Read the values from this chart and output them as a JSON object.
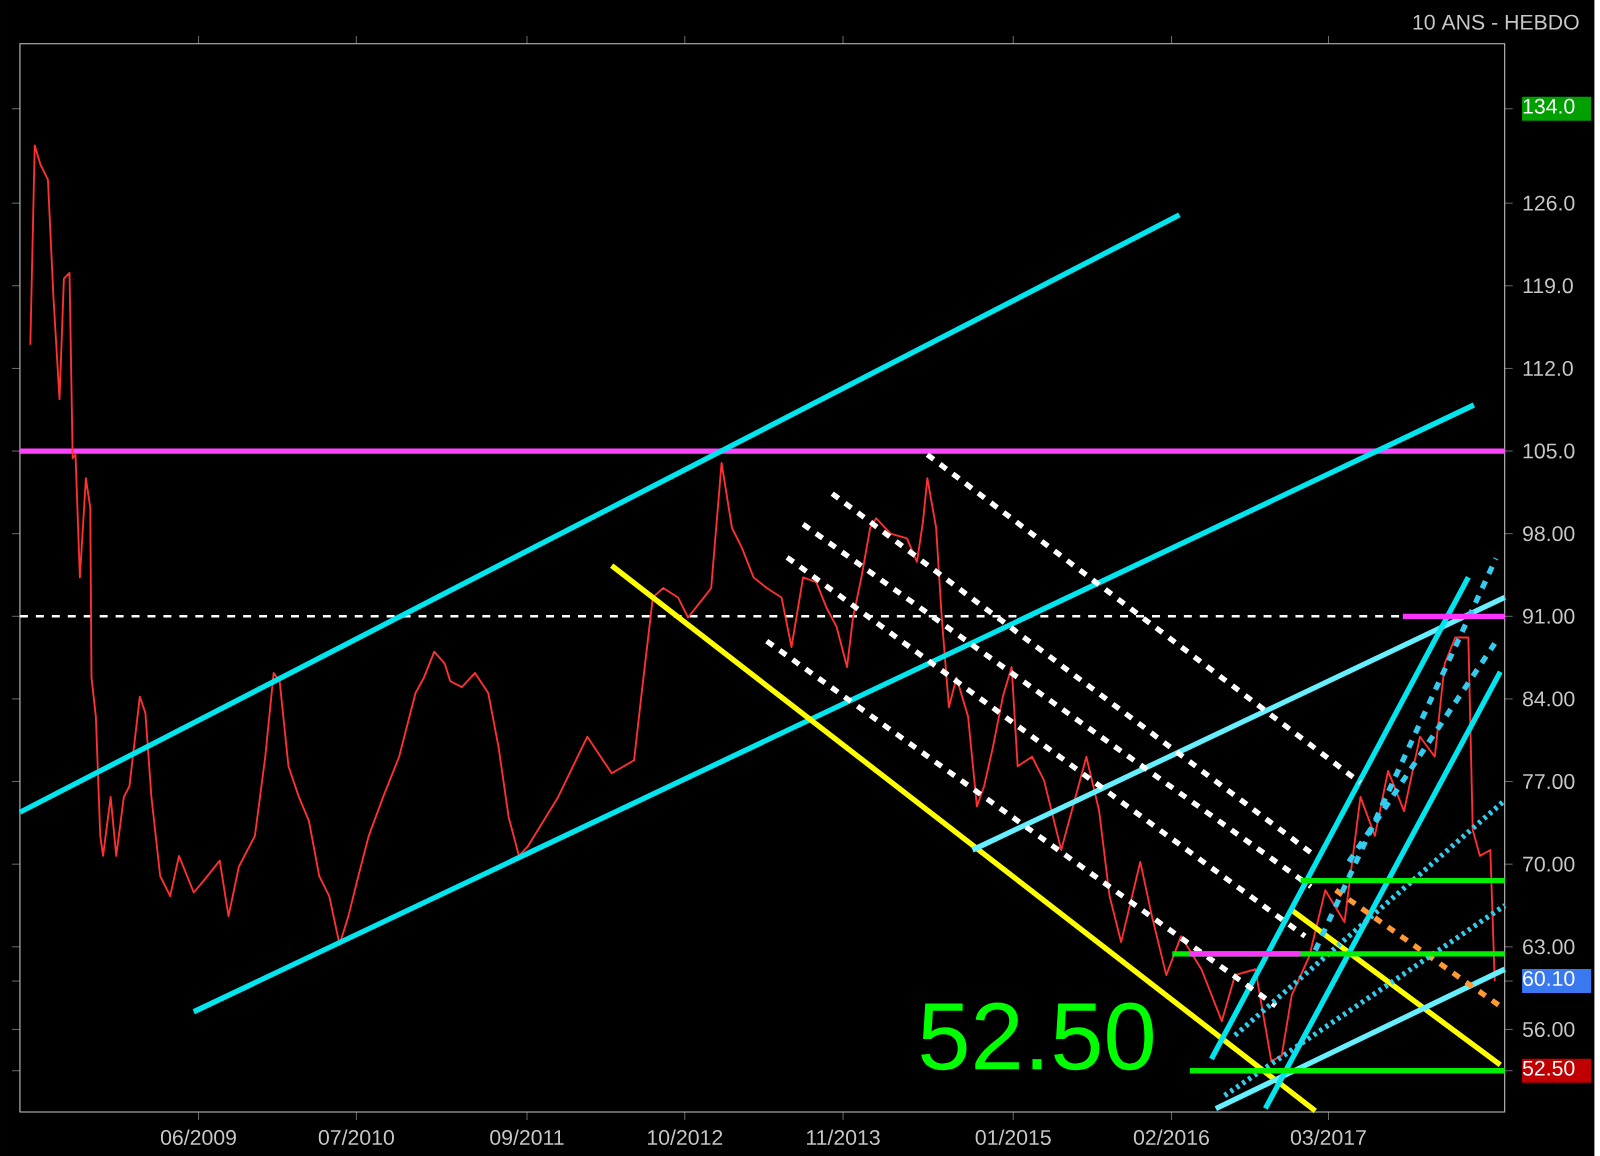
{
  "chart_data": {
    "type": "line",
    "subtitle": "10 ANS - HEBDO",
    "xlim": [
      "2008-03-11",
      "2018-05-16"
    ],
    "ylim": [
      49,
      139.5
    ],
    "xticks": [
      {
        "value": "2009-06-01",
        "label": "06/2009"
      },
      {
        "value": "2010-07-01",
        "label": "07/2010"
      },
      {
        "value": "2011-09-01",
        "label": "09/2011"
      },
      {
        "value": "2012-10-01",
        "label": "10/2012"
      },
      {
        "value": "2013-11-01",
        "label": "11/2013"
      },
      {
        "value": "2015-01-01",
        "label": "01/2015"
      },
      {
        "value": "2016-02-01",
        "label": "02/2016"
      },
      {
        "value": "2017-03-01",
        "label": "03/2017"
      }
    ],
    "yticks": [
      {
        "value": 52.5,
        "label": "52.50"
      },
      {
        "value": 56,
        "label": "56.00"
      },
      {
        "value": 60.1,
        "label": "60.10"
      },
      {
        "value": 63,
        "label": "63.00"
      },
      {
        "value": 70,
        "label": "70.00"
      },
      {
        "value": 77,
        "label": "77.00"
      },
      {
        "value": 84,
        "label": "84.00"
      },
      {
        "value": 91,
        "label": "91.00"
      },
      {
        "value": 98,
        "label": "98.00"
      },
      {
        "value": 105,
        "label": "105.0"
      },
      {
        "value": 112,
        "label": "112.0"
      },
      {
        "value": 119,
        "label": "119.0"
      },
      {
        "value": 126,
        "label": "126.0"
      },
      {
        "value": 134,
        "label": "134.0"
      }
    ],
    "grid": false,
    "ref_lines": [
      {
        "axis": "y",
        "value": 105,
        "color": "#ff44ff",
        "line_style": "solid"
      },
      {
        "axis": "y",
        "value": 91,
        "color": "#ffffff",
        "line_style": "dashed"
      }
    ],
    "annotations": [
      "52.50"
    ],
    "series": [
      {
        "color": "#ff3030",
        "x": [
          "2008-04-06",
          "2008-04-17",
          "2008-05-01",
          "2008-05-20",
          "2008-06-03",
          "2008-06-18",
          "2008-06-29",
          "2008-07-13",
          "2008-07-21",
          "2008-07-28",
          "2008-08-08",
          "2008-08-23",
          "2008-09-03",
          "2008-09-06",
          "2008-09-17",
          "2008-09-28",
          "2008-10-05",
          "2008-10-24",
          "2008-11-07",
          "2008-11-26",
          "2008-12-10",
          "2009-01-05",
          "2009-01-19",
          "2009-02-03",
          "2009-02-25",
          "2009-03-22",
          "2009-04-13",
          "2009-05-20",
          "2009-06-14",
          "2009-07-24",
          "2009-08-15",
          "2009-09-10",
          "2009-10-20",
          "2009-11-15",
          "2009-12-06",
          "2009-12-21",
          "2010-01-12",
          "2010-02-07",
          "2010-03-04",
          "2010-03-30",
          "2010-04-24",
          "2010-05-20",
          "2010-06-11",
          "2010-07-06",
          "2010-08-01",
          "2010-09-06",
          "2010-10-16",
          "2010-11-26",
          "2010-12-17",
          "2011-01-12",
          "2011-02-07",
          "2011-02-21",
          "2011-03-22",
          "2011-04-24",
          "2011-05-27",
          "2011-06-22",
          "2011-07-17",
          "2011-08-12",
          "2011-09-03",
          "2011-11-18",
          "2012-01-30",
          "2012-04-01",
          "2012-05-27",
          "2012-06-14",
          "2012-07-13",
          "2012-08-08",
          "2012-09-14",
          "2012-10-09",
          "2012-11-18",
          "2012-12-06",
          "2013-01-01",
          "2013-01-27",
          "2013-02-21",
          "2013-03-22",
          "2013-04-24",
          "2013-05-31",
          "2013-06-25",
          "2013-07-24",
          "2013-08-26",
          "2013-09-21",
          "2013-10-16",
          "2013-11-11",
          "2013-11-26",
          "2013-12-17",
          "2014-01-08",
          "2014-01-23",
          "2014-02-28",
          "2014-04-10",
          "2014-05-05",
          "2014-05-20",
          "2014-05-31",
          "2014-06-22",
          "2014-07-06",
          "2014-07-24",
          "2014-08-12",
          "2014-09-10",
          "2014-10-02",
          "2014-10-20",
          "2014-11-11",
          "2014-12-06",
          "2014-12-28",
          "2015-01-12",
          "2015-02-17",
          "2015-03-19",
          "2015-05-01",
          "2015-07-03",
          "2015-08-04",
          "2015-08-30",
          "2015-09-28",
          "2015-11-15",
          "2015-12-14",
          "2016-01-19",
          "2016-02-25",
          "2016-04-17",
          "2016-06-07",
          "2016-07-10",
          "2016-08-30",
          "2016-10-09",
          "2016-11-04",
          "2016-11-29",
          "2017-01-12",
          "2017-02-21",
          "2017-04-10",
          "2017-05-20",
          "2017-06-25",
          "2017-07-28",
          "2017-09-06",
          "2017-10-16",
          "2017-11-22",
          "2017-12-17",
          "2018-01-12",
          "2018-02-14",
          "2018-02-25",
          "2018-03-15",
          "2018-04-10",
          "2018-04-21"
        ],
        "values": [
          114.0,
          130.9,
          129.3,
          128.0,
          117.9,
          109.4,
          119.6,
          120.1,
          104.4,
          104.7,
          94.3,
          102.7,
          100.2,
          85.8,
          82.5,
          72.4,
          70.7,
          75.7,
          70.7,
          75.7,
          76.6,
          84.2,
          82.8,
          75.7,
          69.0,
          67.3,
          70.7,
          67.6,
          68.6,
          70.3,
          65.6,
          69.8,
          72.4,
          79.1,
          86.2,
          85.5,
          78.3,
          75.7,
          73.7,
          69.0,
          67.3,
          63.2,
          65.6,
          69.0,
          72.4,
          75.7,
          79.1,
          84.5,
          85.8,
          88.0,
          87.0,
          85.5,
          85.0,
          86.2,
          84.5,
          79.9,
          74.0,
          70.7,
          71.5,
          75.7,
          80.8,
          77.7,
          78.8,
          84.2,
          92.6,
          93.4,
          92.6,
          90.9,
          92.6,
          93.4,
          104.0,
          98.5,
          96.8,
          94.3,
          93.4,
          92.6,
          88.4,
          94.3,
          93.9,
          91.7,
          90.1,
          86.7,
          90.9,
          94.3,
          98.5,
          99.3,
          98.0,
          97.6,
          95.6,
          99.0,
          102.7,
          98.5,
          90.9,
          83.3,
          85.8,
          82.5,
          74.9,
          76.6,
          79.9,
          84.2,
          86.7,
          78.3,
          79.1,
          77.1,
          71.2,
          79.1,
          74.5,
          67.3,
          63.4,
          70.2,
          65.6,
          60.6,
          63.9,
          61.1,
          56.7,
          60.6,
          61.1,
          53.3,
          53.8,
          58.9,
          62.2,
          67.8,
          65.1,
          75.7,
          72.4,
          77.9,
          74.5,
          80.8,
          79.1,
          87.0,
          89.2,
          89.2,
          72.9,
          70.7,
          71.2,
          60.1
        ]
      },
      {
        "color": "#00e5ee",
        "x": [
          "2008-03-11",
          "2016-02-21"
        ],
        "values": [
          74.4,
          125.0
        ]
      },
      {
        "color": "#00e5ee",
        "x": [
          "2009-05-20",
          "2018-02-28"
        ],
        "values": [
          57.5,
          108.9
        ]
      },
      {
        "color": "#ffff00",
        "x": [
          "2012-04-01",
          "2017-01-27"
        ],
        "values": [
          95.3,
          49.1
        ]
      },
      {
        "color": "#ffff00",
        "x": [
          "2016-11-29",
          "2018-05-05"
        ],
        "values": [
          66.1,
          53.0
        ]
      },
      {
        "color": "#66f0ff",
        "x": [
          "2014-09-21",
          "2018-05-16"
        ],
        "values": [
          71.2,
          92.6
        ]
      },
      {
        "color": "#66f0ff",
        "x": [
          "2016-05-23",
          "2018-05-16"
        ],
        "values": [
          49.3,
          61.1
        ]
      },
      {
        "color": "#00e5ee",
        "x": [
          "2016-05-12",
          "2018-02-14"
        ],
        "values": [
          53.5,
          94.3
        ]
      },
      {
        "color": "#00e5ee",
        "x": [
          "2016-09-24",
          "2018-05-05"
        ],
        "values": [
          49.3,
          86.3
        ]
      },
      {
        "color": "#ffffff",
        "line_style": "dashed",
        "x": [
          "2014-05-31",
          "2017-05-20"
        ],
        "values": [
          104.7,
          76.9
        ]
      },
      {
        "color": "#ffffff",
        "line_style": "dashed",
        "x": [
          "2013-10-05",
          "2017-01-27"
        ],
        "values": [
          101.4,
          70.7
        ]
      },
      {
        "color": "#ffffff",
        "line_style": "dashed",
        "x": [
          "2013-07-24",
          "2017-01-16"
        ],
        "values": [
          98.8,
          68.1
        ]
      },
      {
        "color": "#ffffff",
        "line_style": "dashed",
        "x": [
          "2013-06-14",
          "2017-01-01"
        ],
        "values": [
          96.0,
          63.9
        ]
      },
      {
        "color": "#ffffff",
        "line_style": "dashed",
        "x": [
          "2013-04-24",
          "2016-10-20"
        ],
        "values": [
          88.9,
          58.0
        ]
      },
      {
        "color": "#ff9933",
        "line_style": "dashed",
        "x": [
          "2017-03-19",
          "2018-05-16"
        ],
        "values": [
          67.8,
          57.7
        ]
      },
      {
        "color": "#33ccee",
        "line_style": "dotted",
        "x": [
          "2016-07-10",
          "2018-05-16"
        ],
        "values": [
          55.5,
          75.4
        ]
      },
      {
        "color": "#33ccee",
        "line_style": "dotted",
        "x": [
          "2016-06-14",
          "2018-05-16"
        ],
        "values": [
          50.4,
          66.5
        ]
      },
      {
        "color": "#33ccee",
        "line_style": "dashed",
        "x": [
          "2017-01-27",
          "2018-04-24"
        ],
        "values": [
          62.7,
          95.9
        ]
      },
      {
        "color": "#33ccee",
        "line_style": "dashed",
        "x": [
          "2017-04-21",
          "2018-04-21"
        ],
        "values": [
          70.2,
          88.7
        ]
      },
      {
        "color": "#00ee00",
        "x": [
          "2016-03-19",
          "2018-05-16"
        ],
        "values": [
          52.5,
          52.5
        ]
      },
      {
        "color": "#00ee00",
        "x": [
          "2016-02-03",
          "2018-05-16"
        ],
        "values": [
          62.4,
          62.4
        ]
      },
      {
        "color": "#ff33ff",
        "x": [
          "2016-03-19",
          "2016-12-21"
        ],
        "values": [
          62.4,
          62.4
        ]
      },
      {
        "color": "#00ee00",
        "x": [
          "2016-12-21",
          "2018-05-16"
        ],
        "values": [
          68.6,
          68.6
        ]
      },
      {
        "color": "#ff33ff",
        "x": [
          "2017-09-03",
          "2018-05-16"
        ],
        "values": [
          91,
          91
        ]
      }
    ]
  }
}
